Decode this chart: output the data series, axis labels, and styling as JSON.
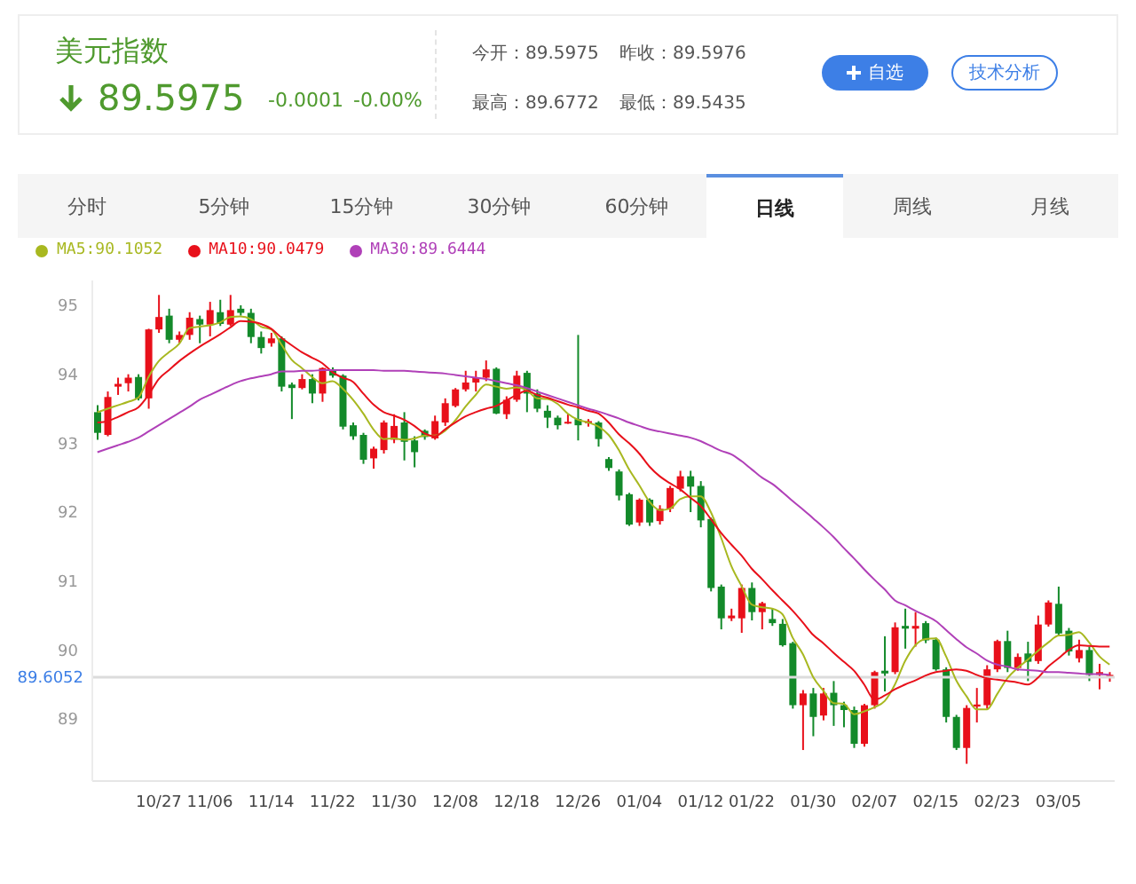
{
  "chart_data": {
    "type": "candlestick",
    "title": "美元指数",
    "annotations": [
      "89.5975",
      "-0.0001",
      "-0.00%",
      "今开：89.5975",
      "昨收：89.5976",
      "最高：89.6772",
      "最低：89.5435",
      "自选",
      "技术分析",
      "分时",
      "5分钟",
      "15分钟",
      "30分钟",
      "60分钟",
      "日线",
      "周线",
      "月线"
    ],
    "categories": [
      null,
      null,
      null,
      null,
      null,
      null,
      "10/27",
      null,
      null,
      null,
      null,
      "11/06",
      null,
      null,
      null,
      null,
      null,
      "11/14",
      null,
      null,
      null,
      null,
      null,
      "11/22",
      null,
      null,
      null,
      null,
      null,
      "11/30",
      null,
      null,
      null,
      null,
      null,
      "12/08",
      null,
      null,
      null,
      null,
      null,
      "12/18",
      null,
      null,
      null,
      null,
      null,
      "12/26",
      null,
      null,
      null,
      null,
      null,
      "01/04",
      null,
      null,
      null,
      null,
      null,
      "01/12",
      null,
      null,
      null,
      null,
      "01/22",
      null,
      null,
      null,
      null,
      null,
      "01/30",
      null,
      null,
      null,
      null,
      null,
      "02/07",
      null,
      null,
      null,
      null,
      null,
      "02/15",
      null,
      null,
      null,
      null,
      null,
      "02/23",
      null,
      null,
      null,
      null,
      null,
      "03/05",
      null,
      null,
      null,
      null,
      null
    ],
    "ohlc": [
      [
        93.45,
        93.55,
        93.05,
        93.15
      ],
      [
        93.12,
        93.75,
        93.1,
        93.67
      ],
      [
        93.82,
        93.95,
        93.7,
        93.86
      ],
      [
        93.87,
        94.0,
        93.75,
        93.95
      ],
      [
        93.96,
        94.0,
        93.62,
        93.65
      ],
      [
        93.65,
        94.66,
        93.5,
        94.65
      ],
      [
        94.65,
        95.15,
        94.6,
        94.83
      ],
      [
        94.85,
        94.95,
        94.45,
        94.5
      ],
      [
        94.5,
        94.62,
        94.45,
        94.57
      ],
      [
        94.57,
        94.9,
        94.5,
        94.82
      ],
      [
        94.8,
        94.85,
        94.45,
        94.72
      ],
      [
        94.72,
        95.05,
        94.55,
        94.93
      ],
      [
        94.9,
        95.08,
        94.7,
        94.73
      ],
      [
        94.72,
        95.15,
        94.7,
        94.93
      ],
      [
        94.95,
        95.0,
        94.85,
        94.89
      ],
      [
        94.89,
        94.95,
        94.45,
        94.54
      ],
      [
        94.54,
        94.62,
        94.3,
        94.38
      ],
      [
        94.45,
        94.6,
        94.4,
        94.52
      ],
      [
        94.52,
        94.55,
        93.75,
        93.82
      ],
      [
        93.85,
        93.88,
        93.35,
        93.8
      ],
      [
        93.8,
        94.0,
        93.78,
        93.93
      ],
      [
        93.93,
        94.0,
        93.58,
        93.72
      ],
      [
        93.72,
        94.1,
        93.6,
        94.09
      ],
      [
        94.06,
        94.1,
        93.95,
        93.98
      ],
      [
        93.98,
        94.0,
        93.2,
        93.24
      ],
      [
        93.26,
        93.3,
        93.05,
        93.1
      ],
      [
        93.12,
        93.15,
        92.7,
        92.76
      ],
      [
        92.78,
        92.95,
        92.63,
        92.92
      ],
      [
        92.9,
        93.33,
        92.85,
        93.3
      ],
      [
        93.05,
        93.42,
        93.0,
        93.25
      ],
      [
        93.3,
        93.45,
        92.75,
        93.02
      ],
      [
        93.04,
        93.1,
        92.65,
        92.87
      ],
      [
        93.18,
        93.2,
        93.05,
        93.09
      ],
      [
        93.07,
        93.4,
        93.05,
        93.32
      ],
      [
        93.3,
        93.65,
        93.25,
        93.58
      ],
      [
        93.54,
        93.8,
        93.52,
        93.78
      ],
      [
        93.78,
        94.05,
        93.75,
        93.88
      ],
      [
        93.88,
        94.05,
        93.75,
        93.95
      ],
      [
        93.95,
        94.2,
        93.9,
        94.07
      ],
      [
        94.08,
        94.1,
        93.42,
        93.43
      ],
      [
        93.42,
        93.68,
        93.35,
        93.63
      ],
      [
        93.63,
        94.05,
        93.6,
        93.98
      ],
      [
        94.02,
        94.05,
        93.45,
        93.72
      ],
      [
        93.72,
        93.78,
        93.45,
        93.5
      ],
      [
        93.47,
        93.55,
        93.22,
        93.37
      ],
      [
        93.37,
        93.4,
        93.2,
        93.26
      ],
      [
        93.29,
        93.42,
        93.28,
        93.31
      ],
      [
        93.35,
        94.57,
        93.04,
        93.26
      ],
      [
        93.29,
        93.35,
        93.24,
        93.32
      ],
      [
        93.3,
        93.32,
        92.95,
        93.06
      ],
      [
        92.77,
        92.8,
        92.6,
        92.64
      ],
      [
        92.59,
        92.62,
        92.17,
        92.24
      ],
      [
        92.26,
        92.28,
        91.8,
        91.82
      ],
      [
        91.85,
        92.2,
        91.8,
        92.18
      ],
      [
        92.18,
        92.2,
        91.8,
        91.85
      ],
      [
        91.87,
        92.1,
        91.82,
        92.05
      ],
      [
        92.05,
        92.38,
        92.0,
        92.35
      ],
      [
        92.34,
        92.6,
        92.3,
        92.52
      ],
      [
        92.52,
        92.6,
        92.0,
        92.37
      ],
      [
        92.38,
        92.45,
        91.78,
        91.88
      ],
      [
        91.9,
        91.92,
        90.85,
        90.9
      ],
      [
        90.92,
        90.95,
        90.3,
        90.46
      ],
      [
        90.46,
        90.6,
        90.42,
        90.5
      ],
      [
        90.46,
        90.95,
        90.25,
        90.9
      ],
      [
        90.9,
        90.98,
        90.43,
        90.55
      ],
      [
        90.55,
        90.7,
        90.3,
        90.68
      ],
      [
        90.45,
        90.6,
        90.35,
        90.39
      ],
      [
        90.38,
        90.45,
        90.05,
        90.07
      ],
      [
        90.1,
        90.12,
        89.15,
        89.2
      ],
      [
        89.2,
        89.42,
        88.55,
        89.37
      ],
      [
        89.37,
        89.45,
        88.75,
        89.03
      ],
      [
        89.05,
        89.45,
        88.98,
        89.37
      ],
      [
        89.38,
        89.55,
        88.9,
        89.2
      ],
      [
        89.2,
        89.25,
        88.88,
        89.13
      ],
      [
        89.13,
        89.18,
        88.58,
        88.64
      ],
      [
        88.64,
        89.22,
        88.6,
        89.2
      ],
      [
        89.2,
        89.7,
        89.15,
        89.68
      ],
      [
        89.7,
        90.2,
        89.4,
        89.66
      ],
      [
        89.68,
        90.4,
        89.65,
        90.33
      ],
      [
        90.35,
        90.6,
        90.02,
        90.31
      ],
      [
        90.31,
        90.55,
        90.05,
        90.35
      ],
      [
        90.39,
        90.42,
        90.1,
        90.14
      ],
      [
        90.15,
        90.18,
        89.7,
        89.72
      ],
      [
        89.72,
        89.75,
        88.95,
        89.03
      ],
      [
        89.03,
        89.06,
        88.55,
        88.58
      ],
      [
        88.58,
        89.2,
        88.35,
        89.16
      ],
      [
        89.18,
        89.45,
        88.95,
        89.21
      ],
      [
        89.2,
        89.78,
        89.15,
        89.72
      ],
      [
        89.72,
        90.15,
        89.68,
        90.13
      ],
      [
        90.13,
        90.28,
        89.68,
        89.74
      ],
      [
        89.74,
        89.95,
        89.7,
        89.9
      ],
      [
        89.95,
        90.12,
        89.55,
        89.83
      ],
      [
        89.84,
        90.5,
        89.8,
        90.37
      ],
      [
        90.37,
        90.72,
        90.34,
        90.69
      ],
      [
        90.67,
        90.92,
        90.2,
        90.24
      ],
      [
        90.28,
        90.32,
        89.92,
        89.98
      ],
      [
        89.88,
        90.15,
        89.82,
        90.0
      ],
      [
        90.0,
        90.05,
        89.55,
        89.64
      ],
      [
        89.64,
        89.8,
        89.43,
        89.68
      ],
      [
        89.6,
        89.68,
        89.54,
        89.64
      ]
    ],
    "series": [
      {
        "type": "line",
        "name": "MA5:90.1052",
        "color": "#a8b820",
        "values": [
          93.45,
          93.5,
          93.55,
          93.6,
          93.66,
          93.96,
          94.19,
          94.32,
          94.44,
          94.67,
          94.69,
          94.71,
          94.75,
          94.83,
          94.84,
          94.8,
          94.69,
          94.65,
          94.43,
          94.21,
          94.09,
          93.96,
          93.87,
          93.9,
          93.79,
          93.63,
          93.43,
          93.2,
          93.06,
          93.07,
          93.05,
          93.07,
          93.11,
          93.11,
          93.18,
          93.33,
          93.53,
          93.7,
          93.85,
          93.82,
          93.79,
          93.81,
          93.77,
          93.65,
          93.64,
          93.57,
          93.43,
          93.34,
          93.3,
          93.24,
          93.12,
          92.9,
          92.62,
          92.39,
          92.15,
          92.03,
          92.05,
          92.19,
          92.23,
          92.23,
          92.0,
          91.63,
          91.22,
          90.93,
          90.66,
          90.62,
          90.6,
          90.52,
          90.18,
          89.94,
          89.61,
          89.41,
          89.23,
          89.22,
          89.07,
          89.11,
          89.17,
          89.26,
          89.5,
          89.84,
          90.07,
          90.16,
          90.17,
          89.91,
          89.56,
          89.33,
          89.14,
          89.14,
          89.36,
          89.59,
          89.74,
          89.86,
          89.99,
          90.11,
          90.21,
          90.22,
          90.26,
          90.11,
          89.91,
          89.79
        ]
      },
      {
        "type": "line",
        "name": "MA10:90.0479",
        "color": "#e8101a",
        "values": [
          93.3,
          93.32,
          93.38,
          93.45,
          93.52,
          93.7,
          93.93,
          94.06,
          94.19,
          94.3,
          94.4,
          94.49,
          94.58,
          94.68,
          94.77,
          94.76,
          94.73,
          94.66,
          94.53,
          94.42,
          94.32,
          94.24,
          94.16,
          94.03,
          93.95,
          93.89,
          93.72,
          93.56,
          93.45,
          93.4,
          93.34,
          93.25,
          93.14,
          93.1,
          93.2,
          93.3,
          93.39,
          93.45,
          93.5,
          93.54,
          93.62,
          93.7,
          93.76,
          93.7,
          93.66,
          93.61,
          93.56,
          93.52,
          93.47,
          93.43,
          93.3,
          93.13,
          93.0,
          92.85,
          92.66,
          92.52,
          92.42,
          92.33,
          92.21,
          92.09,
          91.9,
          91.7,
          91.53,
          91.37,
          91.18,
          91.03,
          90.87,
          90.72,
          90.57,
          90.4,
          90.22,
          90.1,
          89.96,
          89.83,
          89.7,
          89.5,
          89.28,
          89.34,
          89.43,
          89.5,
          89.56,
          89.63,
          89.68,
          89.7,
          89.72,
          89.7,
          89.64,
          89.59,
          89.57,
          89.55,
          89.53,
          89.5,
          89.6,
          89.76,
          89.88,
          90.0,
          90.07,
          90.06,
          90.05,
          90.05
        ]
      },
      {
        "type": "line",
        "name": "MA30:89.6444",
        "color": "#b040b8",
        "values": [
          92.87,
          92.92,
          92.97,
          93.02,
          93.08,
          93.17,
          93.26,
          93.35,
          93.44,
          93.53,
          93.63,
          93.7,
          93.77,
          93.84,
          93.9,
          93.94,
          93.97,
          94.0,
          94.04,
          94.04,
          94.05,
          94.05,
          94.06,
          94.06,
          94.06,
          94.06,
          94.06,
          94.06,
          94.05,
          94.05,
          94.05,
          94.04,
          94.03,
          94.02,
          94.01,
          93.99,
          93.97,
          93.95,
          93.93,
          93.9,
          93.87,
          93.84,
          93.8,
          93.75,
          93.7,
          93.65,
          93.6,
          93.55,
          93.5,
          93.46,
          93.41,
          93.36,
          93.3,
          93.25,
          93.2,
          93.17,
          93.14,
          93.11,
          93.08,
          93.03,
          92.96,
          92.89,
          92.84,
          92.74,
          92.62,
          92.5,
          92.41,
          92.29,
          92.16,
          92.04,
          91.91,
          91.78,
          91.64,
          91.48,
          91.33,
          91.17,
          91.02,
          90.88,
          90.72,
          90.65,
          90.57,
          90.5,
          90.42,
          90.29,
          90.16,
          90.04,
          89.95,
          89.85,
          89.79,
          89.76,
          89.72,
          89.71,
          89.7,
          89.68,
          89.68,
          89.67,
          89.66,
          89.65,
          89.65,
          89.64
        ]
      }
    ],
    "ylim": [
      88.1,
      95.36
    ],
    "yticks": [
      89,
      90,
      91,
      92,
      93,
      94,
      95
    ],
    "ref_lines": [
      {
        "axis": "y",
        "value": 89.6052,
        "label": "89.6052",
        "color": "#dcdcdc"
      }
    ],
    "legend": "top left"
  }
}
